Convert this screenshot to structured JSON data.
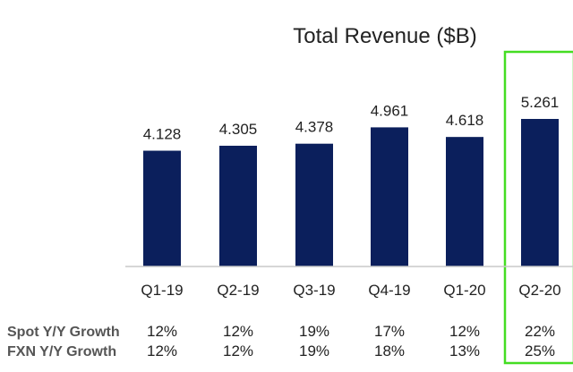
{
  "chart_data": {
    "type": "bar",
    "title": "Total Revenue ($B)",
    "categories": [
      "Q1-19",
      "Q2-19",
      "Q3-19",
      "Q4-19",
      "Q1-20",
      "Q2-20"
    ],
    "values": [
      4.128,
      4.305,
      4.378,
      4.961,
      4.618,
      5.261
    ],
    "value_labels": [
      "4.128",
      "4.305",
      "4.378",
      "4.961",
      "4.618",
      "5.261"
    ],
    "ylim": [
      0,
      5.261
    ],
    "grid": false,
    "bar_color": "#0b1f5c",
    "highlight_color": "#44dd22",
    "highlight_category": "Q2-20",
    "rows": [
      {
        "label": "Spot Y/Y Growth",
        "values": [
          "12%",
          "12%",
          "19%",
          "17%",
          "12%",
          "22%"
        ]
      },
      {
        "label": "FXN Y/Y Growth",
        "values": [
          "12%",
          "12%",
          "19%",
          "18%",
          "13%",
          "25%"
        ]
      }
    ]
  }
}
